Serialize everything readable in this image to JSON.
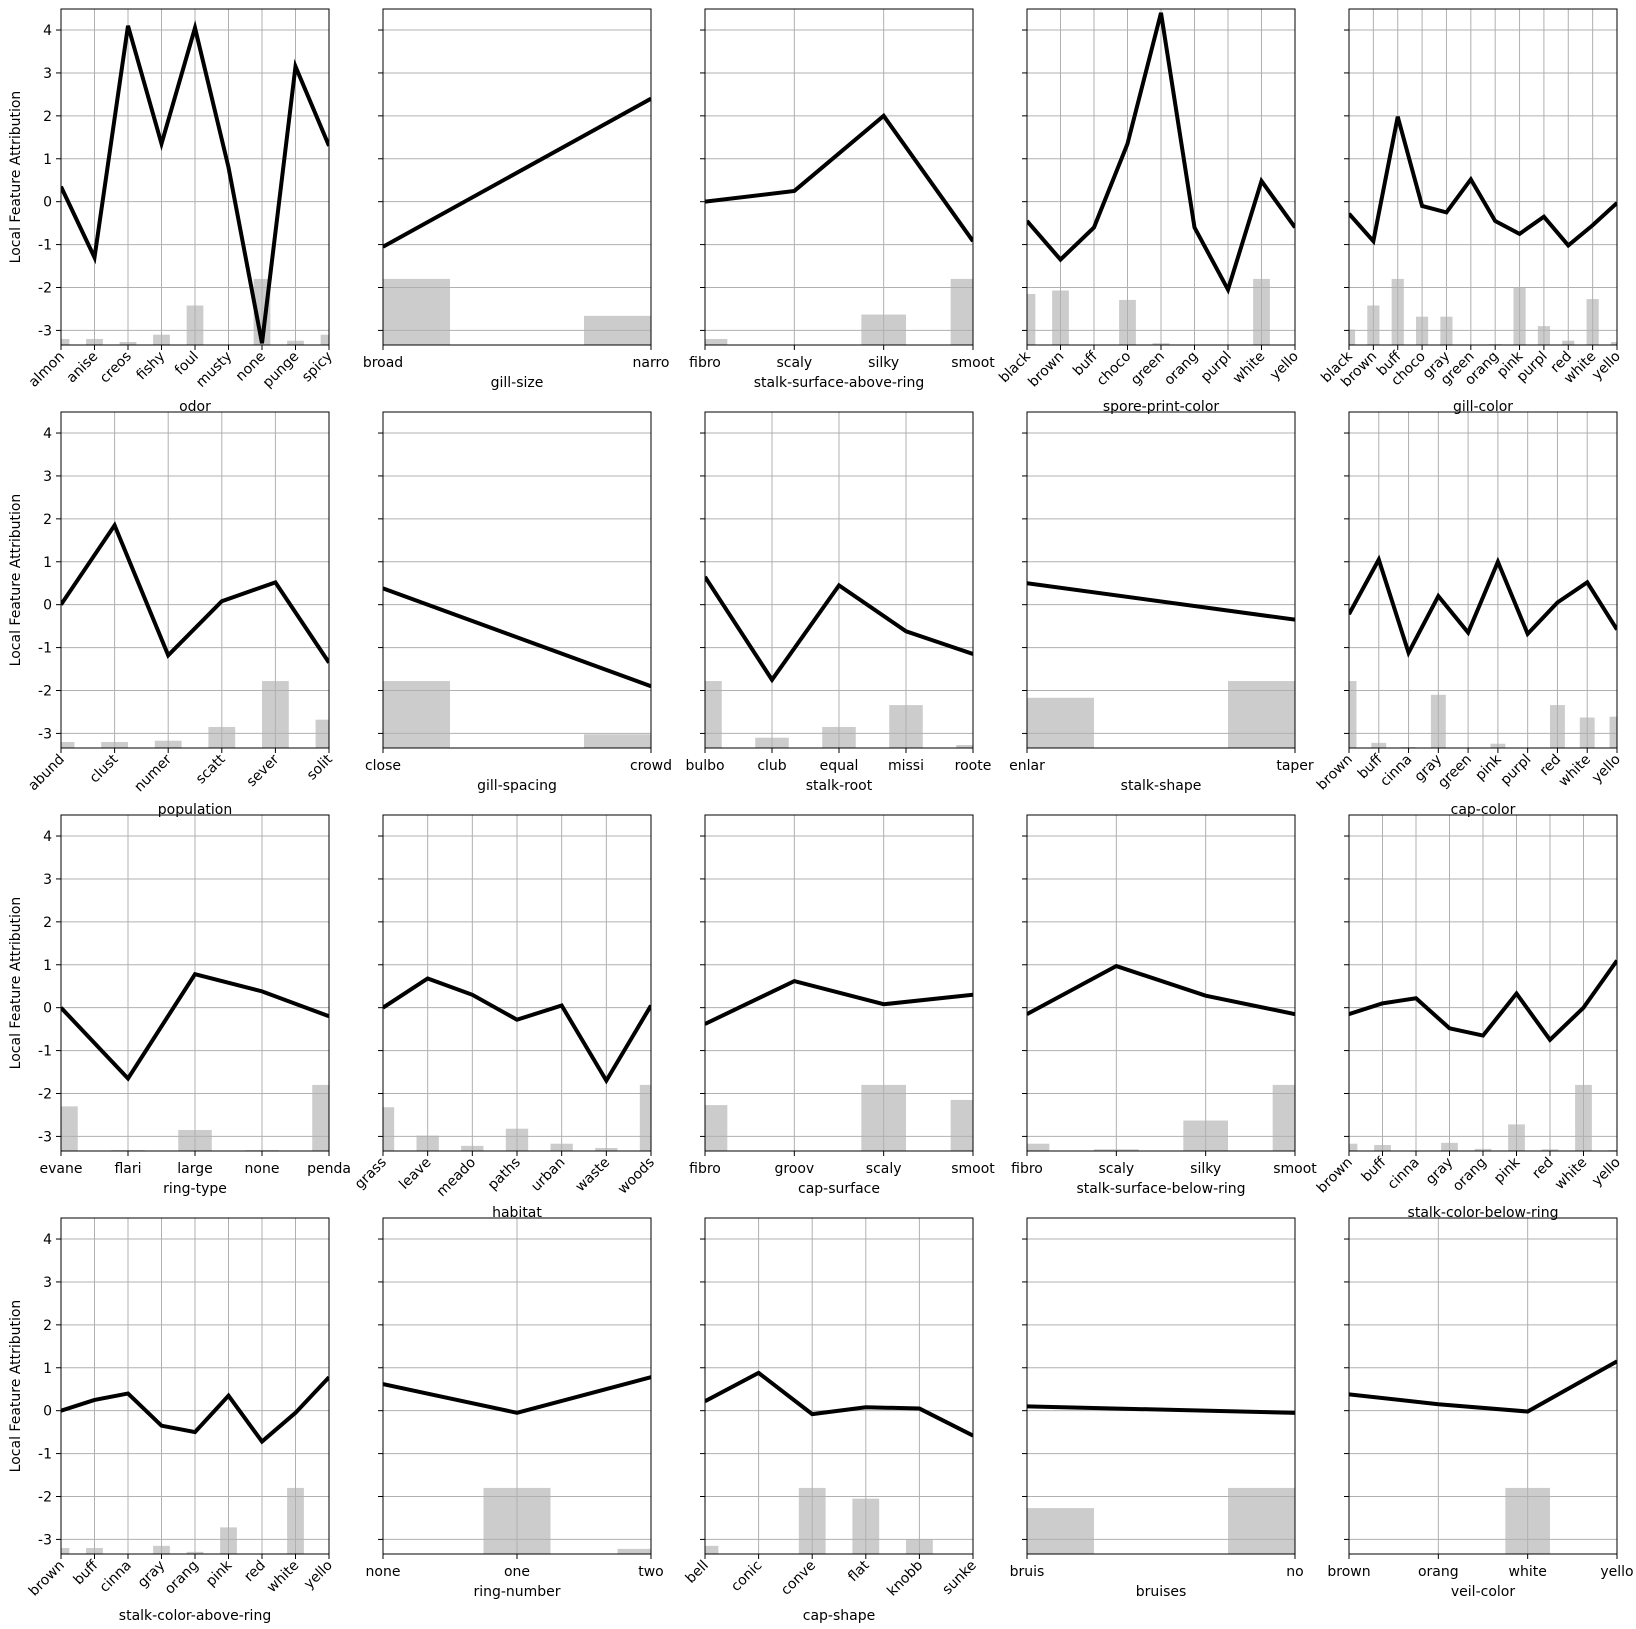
{
  "chart_data": [
    {
      "type": "line",
      "xlabel": "odor",
      "categories": [
        "almon",
        "anise",
        "creos",
        "fishy",
        "foul",
        "musty",
        "none",
        "punge",
        "spicy"
      ],
      "values": [
        0.35,
        -1.3,
        4.1,
        1.35,
        4.05,
        0.8,
        -3.3,
        3.15,
        1.3
      ],
      "bar_values": [
        -3.2,
        -3.2,
        -3.27,
        -3.1,
        -2.42,
        -3.34,
        -1.8,
        -3.24,
        -3.1
      ],
      "ylabel": "Local Feature Attribution",
      "show_yticklabels": true,
      "xtick_rotation": 45,
      "color": "#000000",
      "bar_color": "#cccccc",
      "grid": true,
      "ylim": [
        -3.34,
        4.49
      ],
      "yticks": [
        -3,
        -2,
        -1,
        0,
        1,
        2,
        3,
        4
      ]
    },
    {
      "type": "line",
      "xlabel": "gill-size",
      "categories": [
        "broad",
        "narro"
      ],
      "values": [
        -1.05,
        2.4
      ],
      "bar_values": [
        -1.8,
        -2.66
      ],
      "show_yticklabels": false,
      "xtick_rotation": 0,
      "color": "#000000",
      "bar_color": "#cccccc",
      "grid": true,
      "ylim": [
        -3.34,
        4.49
      ],
      "yticks": [
        -3,
        -2,
        -1,
        0,
        1,
        2,
        3,
        4
      ]
    },
    {
      "type": "line",
      "xlabel": "stalk-surface-above-ring",
      "categories": [
        "fibro",
        "scaly",
        "silky",
        "smoot"
      ],
      "values": [
        0.0,
        0.25,
        2.0,
        -0.92
      ],
      "bar_values": [
        -3.2,
        -3.34,
        -2.63,
        -1.8
      ],
      "show_yticklabels": false,
      "xtick_rotation": 0,
      "color": "#000000",
      "bar_color": "#cccccc",
      "grid": true,
      "ylim": [
        -3.34,
        4.49
      ],
      "yticks": [
        -3,
        -2,
        -1,
        0,
        1,
        2,
        3,
        4
      ]
    },
    {
      "type": "line",
      "xlabel": "spore-print-color",
      "categories": [
        "black",
        "brown",
        "buff",
        "choco",
        "green",
        "orang",
        "purpl",
        "white",
        "yello"
      ],
      "values": [
        -0.45,
        -1.35,
        -0.6,
        1.35,
        4.4,
        -0.6,
        -2.05,
        0.48,
        -0.6
      ],
      "bar_values": [
        -2.15,
        -2.07,
        -3.34,
        -2.29,
        -3.3,
        -3.34,
        -3.34,
        -1.8,
        -3.34
      ],
      "show_yticklabels": false,
      "xtick_rotation": 45,
      "color": "#000000",
      "bar_color": "#cccccc",
      "grid": true,
      "ylim": [
        -3.34,
        4.49
      ],
      "yticks": [
        -3,
        -2,
        -1,
        0,
        1,
        2,
        3,
        4
      ]
    },
    {
      "type": "line",
      "xlabel": "gill-color",
      "categories": [
        "black",
        "brown",
        "buff",
        "choco",
        "gray",
        "green",
        "orang",
        "pink",
        "purpl",
        "red",
        "white",
        "yello"
      ],
      "values": [
        -0.28,
        -0.92,
        1.98,
        -0.1,
        -0.25,
        0.52,
        -0.45,
        -0.75,
        -0.35,
        -1.02,
        -0.55,
        -0.03
      ],
      "bar_values": [
        -2.98,
        -2.42,
        -1.8,
        -2.68,
        -2.68,
        -3.34,
        -3.32,
        -2.0,
        -2.9,
        -3.24,
        -2.27,
        -3.27
      ],
      "show_yticklabels": false,
      "xtick_rotation": 45,
      "color": "#000000",
      "bar_color": "#cccccc",
      "grid": true,
      "ylim": [
        -3.34,
        4.49
      ],
      "yticks": [
        -3,
        -2,
        -1,
        0,
        1,
        2,
        3,
        4
      ]
    },
    {
      "type": "line",
      "xlabel": "population",
      "categories": [
        "abund",
        "clust",
        "numer",
        "scatt",
        "sever",
        "solit"
      ],
      "values": [
        0.0,
        1.85,
        -1.18,
        0.08,
        0.52,
        -1.35
      ],
      "bar_values": [
        -3.2,
        -3.2,
        -3.17,
        -2.85,
        -1.78,
        -2.68
      ],
      "ylabel": "Local Feature Attribution",
      "show_yticklabels": true,
      "xtick_rotation": 45,
      "color": "#000000",
      "bar_color": "#cccccc",
      "grid": true,
      "ylim": [
        -3.34,
        4.49
      ],
      "yticks": [
        -3,
        -2,
        -1,
        0,
        1,
        2,
        3,
        4
      ]
    },
    {
      "type": "line",
      "xlabel": "gill-spacing",
      "categories": [
        "close",
        "crowd"
      ],
      "values": [
        0.38,
        -1.9
      ],
      "bar_values": [
        -1.78,
        -3.02
      ],
      "show_yticklabels": false,
      "xtick_rotation": 0,
      "color": "#000000",
      "bar_color": "#cccccc",
      "grid": true,
      "ylim": [
        -3.34,
        4.49
      ],
      "yticks": [
        -3,
        -2,
        -1,
        0,
        1,
        2,
        3,
        4
      ]
    },
    {
      "type": "line",
      "xlabel": "stalk-root",
      "categories": [
        "bulbo",
        "club",
        "equal",
        "missi",
        "roote"
      ],
      "values": [
        0.65,
        -1.75,
        0.45,
        -0.62,
        -1.15
      ],
      "bar_values": [
        -1.78,
        -3.1,
        -2.85,
        -2.34,
        -3.27
      ],
      "show_yticklabels": false,
      "xtick_rotation": 0,
      "color": "#000000",
      "bar_color": "#cccccc",
      "grid": true,
      "ylim": [
        -3.34,
        4.49
      ],
      "yticks": [
        -3,
        -2,
        -1,
        0,
        1,
        2,
        3,
        4
      ]
    },
    {
      "type": "line",
      "xlabel": "stalk-shape",
      "categories": [
        "enlar",
        "taper"
      ],
      "values": [
        0.5,
        -0.35
      ],
      "bar_values": [
        -2.17,
        -1.78
      ],
      "show_yticklabels": false,
      "xtick_rotation": 0,
      "color": "#000000",
      "bar_color": "#cccccc",
      "grid": true,
      "ylim": [
        -3.34,
        4.49
      ],
      "yticks": [
        -3,
        -2,
        -1,
        0,
        1,
        2,
        3,
        4
      ]
    },
    {
      "type": "line",
      "xlabel": "cap-color",
      "categories": [
        "brown",
        "buff",
        "cinna",
        "gray",
        "green",
        "pink",
        "purpl",
        "red",
        "white",
        "yello"
      ],
      "values": [
        -0.22,
        1.05,
        -1.12,
        0.2,
        -0.65,
        1.0,
        -0.68,
        0.05,
        0.52,
        -0.58
      ],
      "bar_values": [
        -1.78,
        -3.22,
        -3.32,
        -2.1,
        -3.34,
        -3.24,
        -3.34,
        -2.34,
        -2.63,
        -2.61
      ],
      "show_yticklabels": false,
      "xtick_rotation": 45,
      "color": "#000000",
      "bar_color": "#cccccc",
      "grid": true,
      "ylim": [
        -3.34,
        4.49
      ],
      "yticks": [
        -3,
        -2,
        -1,
        0,
        1,
        2,
        3,
        4
      ]
    },
    {
      "type": "line",
      "xlabel": "ring-type",
      "categories": [
        "evane",
        "flari",
        "large",
        "none",
        "penda"
      ],
      "values": [
        0.0,
        -1.65,
        0.78,
        0.38,
        -0.2
      ],
      "bar_values": [
        -2.3,
        -3.32,
        -2.85,
        -3.32,
        -1.8
      ],
      "ylabel": "Local Feature Attribution",
      "show_yticklabels": true,
      "xtick_rotation": 0,
      "color": "#000000",
      "bar_color": "#cccccc",
      "grid": true,
      "ylim": [
        -3.34,
        4.49
      ],
      "yticks": [
        -3,
        -2,
        -1,
        0,
        1,
        2,
        3,
        4
      ]
    },
    {
      "type": "line",
      "xlabel": "habitat",
      "categories": [
        "grass",
        "leave",
        "meado",
        "paths",
        "urban",
        "waste",
        "woods"
      ],
      "values": [
        0.0,
        0.68,
        0.3,
        -0.28,
        0.05,
        -1.7,
        0.05
      ],
      "bar_values": [
        -2.32,
        -2.98,
        -3.22,
        -2.82,
        -3.17,
        -3.27,
        -1.8
      ],
      "show_yticklabels": false,
      "xtick_rotation": 45,
      "color": "#000000",
      "bar_color": "#cccccc",
      "grid": true,
      "ylim": [
        -3.34,
        4.49
      ],
      "yticks": [
        -3,
        -2,
        -1,
        0,
        1,
        2,
        3,
        4
      ]
    },
    {
      "type": "line",
      "xlabel": "cap-surface",
      "categories": [
        "fibro",
        "groov",
        "scaly",
        "smoot"
      ],
      "values": [
        -0.38,
        0.62,
        0.08,
        0.3
      ],
      "bar_values": [
        -2.27,
        -3.34,
        -1.8,
        -2.15
      ],
      "show_yticklabels": false,
      "xtick_rotation": 0,
      "color": "#000000",
      "bar_color": "#cccccc",
      "grid": true,
      "ylim": [
        -3.34,
        4.49
      ],
      "yticks": [
        -3,
        -2,
        -1,
        0,
        1,
        2,
        3,
        4
      ]
    },
    {
      "type": "line",
      "xlabel": "stalk-surface-below-ring",
      "categories": [
        "fibro",
        "scaly",
        "silky",
        "smoot"
      ],
      "values": [
        -0.15,
        0.97,
        0.28,
        -0.15
      ],
      "bar_values": [
        -3.17,
        -3.3,
        -2.63,
        -1.8
      ],
      "show_yticklabels": false,
      "xtick_rotation": 0,
      "color": "#000000",
      "bar_color": "#cccccc",
      "grid": true,
      "ylim": [
        -3.34,
        4.49
      ],
      "yticks": [
        -3,
        -2,
        -1,
        0,
        1,
        2,
        3,
        4
      ]
    },
    {
      "type": "line",
      "xlabel": "stalk-color-below-ring",
      "categories": [
        "brown",
        "buff",
        "cinna",
        "gray",
        "orang",
        "pink",
        "red",
        "white",
        "yello"
      ],
      "values": [
        -0.15,
        0.1,
        0.22,
        -0.48,
        -0.65,
        0.33,
        -0.75,
        0.0,
        1.1
      ],
      "bar_values": [
        -3.17,
        -3.2,
        -3.34,
        -3.15,
        -3.29,
        -2.72,
        -3.3,
        -1.8,
        -3.32
      ],
      "show_yticklabels": false,
      "xtick_rotation": 45,
      "color": "#000000",
      "bar_color": "#cccccc",
      "grid": true,
      "ylim": [
        -3.34,
        4.49
      ],
      "yticks": [
        -3,
        -2,
        -1,
        0,
        1,
        2,
        3,
        4
      ]
    },
    {
      "type": "line",
      "xlabel": "stalk-color-above-ring",
      "categories": [
        "brown",
        "buff",
        "cinna",
        "gray",
        "orang",
        "pink",
        "red",
        "white",
        "yello"
      ],
      "values": [
        0.0,
        0.25,
        0.4,
        -0.35,
        -0.5,
        0.35,
        -0.72,
        -0.05,
        0.78
      ],
      "bar_values": [
        -3.2,
        -3.2,
        -3.34,
        -3.15,
        -3.29,
        -2.72,
        -3.34,
        -1.8,
        -3.34
      ],
      "ylabel": "Local Feature Attribution",
      "show_yticklabels": true,
      "xtick_rotation": 45,
      "color": "#000000",
      "bar_color": "#cccccc",
      "grid": true,
      "ylim": [
        -3.34,
        4.49
      ],
      "yticks": [
        -3,
        -2,
        -1,
        0,
        1,
        2,
        3,
        4
      ]
    },
    {
      "type": "line",
      "xlabel": "ring-number",
      "categories": [
        "none",
        "one",
        "two"
      ],
      "values": [
        0.62,
        -0.05,
        0.78
      ],
      "bar_values": [
        -3.34,
        -1.8,
        -3.22
      ],
      "show_yticklabels": false,
      "xtick_rotation": 0,
      "color": "#000000",
      "bar_color": "#cccccc",
      "grid": true,
      "ylim": [
        -3.34,
        4.49
      ],
      "yticks": [
        -3,
        -2,
        -1,
        0,
        1,
        2,
        3,
        4
      ]
    },
    {
      "type": "line",
      "xlabel": "cap-shape",
      "categories": [
        "bell",
        "conic",
        "conve",
        "flat",
        "knobb",
        "sunke"
      ],
      "values": [
        0.22,
        0.88,
        -0.08,
        0.08,
        0.05,
        -0.58
      ],
      "bar_values": [
        -3.15,
        -3.34,
        -1.8,
        -2.05,
        -3.0,
        -3.34
      ],
      "show_yticklabels": false,
      "xtick_rotation": 45,
      "color": "#000000",
      "bar_color": "#cccccc",
      "grid": true,
      "ylim": [
        -3.34,
        4.49
      ],
      "yticks": [
        -3,
        -2,
        -1,
        0,
        1,
        2,
        3,
        4
      ]
    },
    {
      "type": "line",
      "xlabel": "bruises",
      "categories": [
        "bruis",
        "no"
      ],
      "values": [
        0.1,
        -0.05
      ],
      "bar_values": [
        -2.27,
        -1.8
      ],
      "show_yticklabels": false,
      "xtick_rotation": 0,
      "color": "#000000",
      "bar_color": "#cccccc",
      "grid": true,
      "ylim": [
        -3.34,
        4.49
      ],
      "yticks": [
        -3,
        -2,
        -1,
        0,
        1,
        2,
        3,
        4
      ]
    },
    {
      "type": "line",
      "xlabel": "veil-color",
      "categories": [
        "brown",
        "orang",
        "white",
        "yello"
      ],
      "values": [
        0.38,
        0.15,
        -0.02,
        1.15
      ],
      "bar_values": [
        -3.34,
        -3.34,
        -1.8,
        -3.34
      ],
      "show_yticklabels": false,
      "xtick_rotation": 0,
      "color": "#000000",
      "bar_color": "#cccccc",
      "grid": true,
      "ylim": [
        -3.34,
        4.49
      ],
      "yticks": [
        -3,
        -2,
        -1,
        0,
        1,
        2,
        3,
        4
      ]
    }
  ]
}
